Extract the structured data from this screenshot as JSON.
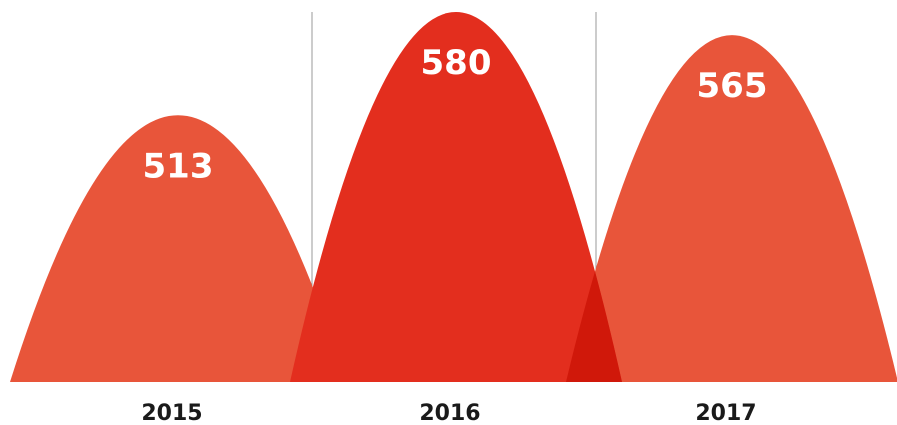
{
  "chart_data": {
    "type": "area",
    "categories": [
      "2015",
      "2016",
      "2017"
    ],
    "values": [
      513,
      580,
      565
    ],
    "title": "",
    "xlabel": "",
    "ylabel": "",
    "grid": false,
    "legend": "none",
    "colors": [
      "#E8553A",
      "#E32E1E",
      "#E8553A"
    ],
    "overlap_color": "#D0180A"
  }
}
